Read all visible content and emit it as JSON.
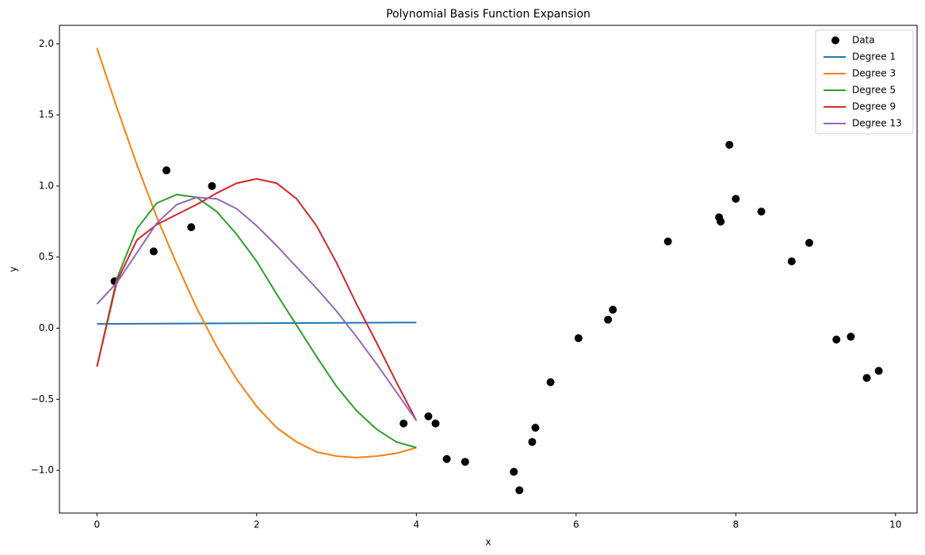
{
  "chart_data": {
    "type": "line",
    "title": "Polynomial Basis Function Expansion",
    "x_label": "x",
    "y_label": "y",
    "xlim": [
      -0.47,
      10.27
    ],
    "ylim": [
      -1.3,
      2.13
    ],
    "xticks": [
      0,
      2,
      4,
      6,
      8,
      10
    ],
    "yticks": [
      {
        "value": -1,
        "label": "−1.0"
      },
      {
        "value": -0.5,
        "label": "−0.5"
      },
      {
        "value": 0,
        "label": "0.0"
      },
      0.5,
      {
        "value": 1,
        "label": "1.0"
      },
      1.5,
      {
        "value": 2,
        "label": "2.0"
      }
    ],
    "legend": "upper right",
    "series": [
      {
        "name": "Data",
        "kind": "scatter",
        "color": "#000000",
        "x": [
          0.22,
          0.71,
          0.87,
          1.18,
          1.44,
          3.84,
          4.15,
          4.24,
          4.38,
          4.61,
          5.22,
          5.29,
          5.45,
          5.49,
          5.68,
          6.03,
          6.4,
          6.46,
          7.15,
          7.79,
          7.81,
          7.92,
          8.0,
          8.32,
          8.7,
          8.92,
          9.26,
          9.44,
          9.64,
          9.79
        ],
        "values": [
          0.33,
          0.54,
          1.11,
          0.71,
          1.0,
          -0.67,
          -0.62,
          -0.67,
          -0.92,
          -0.94,
          -1.01,
          -1.14,
          -0.8,
          -0.7,
          -0.38,
          -0.07,
          0.06,
          0.13,
          0.61,
          0.78,
          0.75,
          1.29,
          0.91,
          0.82,
          0.47,
          0.6,
          -0.08,
          -0.06,
          -0.35,
          -0.3
        ]
      },
      {
        "name": "Degree 1",
        "kind": "line",
        "color": "#1f77b4",
        "x": [
          0,
          4
        ],
        "values": [
          0.03,
          0.04
        ]
      },
      {
        "name": "Degree 3",
        "kind": "line",
        "color": "#ff7f0e",
        "x": [
          0,
          0.25,
          0.5,
          0.75,
          1,
          1.25,
          1.5,
          1.75,
          2,
          2.25,
          2.5,
          2.75,
          3,
          3.25,
          3.5,
          3.75,
          4
        ],
        "values": [
          1.97,
          1.55,
          1.15,
          0.78,
          0.45,
          0.14,
          -0.13,
          -0.36,
          -0.55,
          -0.7,
          -0.8,
          -0.87,
          -0.9,
          -0.91,
          -0.9,
          -0.88,
          -0.84
        ]
      },
      {
        "name": "Degree 5",
        "kind": "line",
        "color": "#2ca02c",
        "x": [
          0,
          0.25,
          0.5,
          0.75,
          1,
          1.25,
          1.5,
          1.75,
          2,
          2.25,
          2.5,
          2.75,
          3,
          3.25,
          3.5,
          3.75,
          4
        ],
        "values": [
          -0.27,
          0.35,
          0.7,
          0.88,
          0.94,
          0.92,
          0.82,
          0.66,
          0.47,
          0.24,
          0.02,
          -0.2,
          -0.41,
          -0.58,
          -0.71,
          -0.8,
          -0.84
        ]
      },
      {
        "name": "Degree 9",
        "kind": "line",
        "color": "#d62728",
        "x": [
          0,
          0.25,
          0.5,
          0.75,
          1,
          1.25,
          1.5,
          1.75,
          2,
          2.25,
          2.5,
          2.75,
          3,
          3.25,
          3.5,
          3.75,
          4
        ],
        "values": [
          -0.27,
          0.33,
          0.62,
          0.73,
          0.8,
          0.87,
          0.95,
          1.02,
          1.05,
          1.02,
          0.91,
          0.72,
          0.46,
          0.17,
          -0.1,
          -0.38,
          -0.65
        ]
      },
      {
        "name": "Degree 13",
        "kind": "line",
        "color": "#9467bd",
        "x": [
          0,
          0.25,
          0.5,
          0.75,
          1,
          1.25,
          1.5,
          1.75,
          2,
          2.25,
          2.5,
          2.75,
          3,
          3.25,
          3.5,
          3.75,
          4
        ],
        "values": [
          0.17,
          0.32,
          0.53,
          0.74,
          0.87,
          0.92,
          0.91,
          0.84,
          0.72,
          0.58,
          0.43,
          0.28,
          0.12,
          -0.06,
          -0.25,
          -0.45,
          -0.65
        ]
      }
    ]
  }
}
